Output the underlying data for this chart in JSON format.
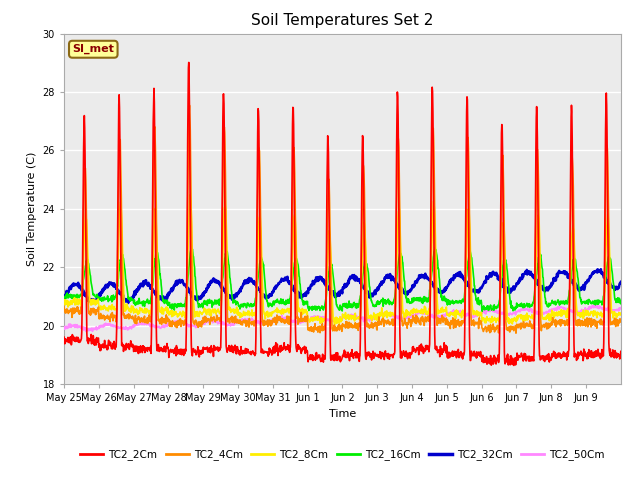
{
  "title": "Soil Temperatures Set 2",
  "xlabel": "Time",
  "ylabel": "Soil Temperature (C)",
  "ylim": [
    18,
    30
  ],
  "annotation": "SI_met",
  "series_order": [
    "TC2_2Cm",
    "TC2_4Cm",
    "TC2_8Cm",
    "TC2_16Cm",
    "TC2_32Cm",
    "TC2_50Cm"
  ],
  "series": {
    "TC2_2Cm": {
      "color": "#FF0000",
      "lw": 1.2
    },
    "TC2_4Cm": {
      "color": "#FF8C00",
      "lw": 1.2
    },
    "TC2_8Cm": {
      "color": "#FFEE00",
      "lw": 1.2
    },
    "TC2_16Cm": {
      "color": "#00EE00",
      "lw": 1.2
    },
    "TC2_32Cm": {
      "color": "#0000CC",
      "lw": 1.8
    },
    "TC2_50Cm": {
      "color": "#FF88FF",
      "lw": 1.2
    }
  },
  "xtick_labels": [
    "May 25",
    "May 26",
    "May 27",
    "May 28",
    "May 29",
    "May 30",
    "May 31",
    "Jun 1",
    "Jun 2",
    "Jun 3",
    "Jun 4",
    "Jun 5",
    "Jun 6",
    "Jun 7",
    "Jun 8",
    "Jun 9"
  ],
  "ytick_labels": [
    18,
    20,
    22,
    24,
    26,
    28,
    30
  ],
  "plot_bg_color": "#EBEBEB",
  "grid_color": "#FFFFFF",
  "title_fontsize": 11,
  "tick_fontsize": 7,
  "label_fontsize": 8
}
